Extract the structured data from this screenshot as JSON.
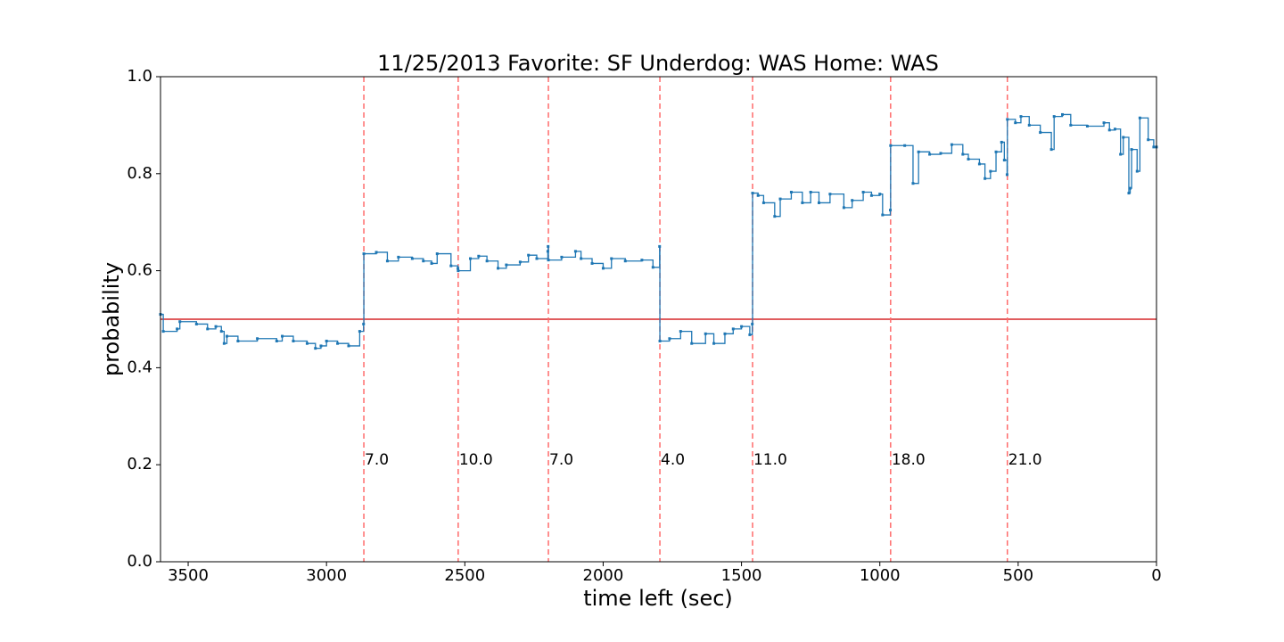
{
  "chart_data": {
    "type": "step",
    "title": "11/25/2013 Favorite: SF Underdog: WAS Home: WAS",
    "x_label": "time left (sec)",
    "y_label": "probability",
    "xlim": [
      3600,
      0
    ],
    "ylim": [
      0,
      1
    ],
    "xticks": [
      3500,
      3000,
      2500,
      2000,
      1500,
      1000,
      500,
      0
    ],
    "yticks": [
      {
        "value": 0,
        "label": "0.0"
      },
      {
        "value": 0.2,
        "label": "0.2"
      },
      {
        "value": 0.4,
        "label": "0.4"
      },
      {
        "value": 0.6,
        "label": "0.6"
      },
      {
        "value": 0.8,
        "label": "0.8"
      },
      {
        "value": 1,
        "label": "1.0"
      }
    ],
    "reference_line": {
      "value": 0.5,
      "color": "#d62728"
    },
    "events": [
      {
        "x": 2865,
        "label": "7.0"
      },
      {
        "x": 2524,
        "label": "10.0"
      },
      {
        "x": 2198,
        "label": "7.0"
      },
      {
        "x": 1795,
        "label": "4.0"
      },
      {
        "x": 1460,
        "label": "11.0"
      },
      {
        "x": 961,
        "label": "18.0"
      },
      {
        "x": 539,
        "label": "21.0"
      }
    ],
    "event_label_y": 0.2,
    "event_color": "#ff6b6b",
    "color": "#1f77b4",
    "x": [
      3600,
      3590,
      3540,
      3530,
      3470,
      3430,
      3400,
      3380,
      3370,
      3360,
      3320,
      3250,
      3180,
      3160,
      3120,
      3070,
      3040,
      3020,
      3000,
      2960,
      2920,
      2880,
      2866,
      2865,
      2820,
      2780,
      2740,
      2690,
      2650,
      2620,
      2600,
      2550,
      2525,
      2524,
      2480,
      2450,
      2420,
      2380,
      2350,
      2300,
      2270,
      2240,
      2200,
      2199,
      2198,
      2150,
      2100,
      2080,
      2040,
      2000,
      1970,
      1920,
      1860,
      1820,
      1796,
      1795,
      1760,
      1720,
      1680,
      1630,
      1600,
      1560,
      1530,
      1500,
      1470,
      1461,
      1460,
      1440,
      1420,
      1380,
      1360,
      1320,
      1280,
      1250,
      1220,
      1180,
      1130,
      1100,
      1060,
      1030,
      1000,
      990,
      962,
      961,
      910,
      880,
      860,
      820,
      780,
      740,
      700,
      680,
      640,
      620,
      600,
      580,
      560,
      550,
      540,
      539,
      510,
      490,
      460,
      420,
      380,
      370,
      340,
      310,
      250,
      190,
      170,
      150,
      130,
      120,
      100,
      95,
      90,
      70,
      60,
      30,
      10,
      0
    ],
    "values": [
      0.51,
      0.475,
      0.48,
      0.495,
      0.49,
      0.48,
      0.485,
      0.475,
      0.45,
      0.465,
      0.455,
      0.46,
      0.455,
      0.465,
      0.455,
      0.45,
      0.44,
      0.445,
      0.455,
      0.45,
      0.445,
      0.475,
      0.49,
      0.635,
      0.638,
      0.62,
      0.628,
      0.625,
      0.62,
      0.615,
      0.635,
      0.61,
      0.605,
      0.6,
      0.625,
      0.63,
      0.62,
      0.605,
      0.612,
      0.618,
      0.632,
      0.625,
      0.64,
      0.65,
      0.622,
      0.628,
      0.64,
      0.625,
      0.615,
      0.605,
      0.625,
      0.62,
      0.622,
      0.607,
      0.65,
      0.455,
      0.46,
      0.475,
      0.45,
      0.47,
      0.45,
      0.47,
      0.48,
      0.485,
      0.468,
      0.49,
      0.76,
      0.755,
      0.74,
      0.712,
      0.748,
      0.762,
      0.74,
      0.762,
      0.74,
      0.758,
      0.73,
      0.745,
      0.762,
      0.755,
      0.758,
      0.715,
      0.725,
      0.858,
      0.858,
      0.78,
      0.845,
      0.84,
      0.842,
      0.86,
      0.84,
      0.83,
      0.82,
      0.79,
      0.805,
      0.845,
      0.865,
      0.828,
      0.798,
      0.912,
      0.905,
      0.918,
      0.9,
      0.885,
      0.85,
      0.918,
      0.922,
      0.9,
      0.898,
      0.905,
      0.89,
      0.892,
      0.84,
      0.875,
      0.76,
      0.77,
      0.85,
      0.805,
      0.915,
      0.87,
      0.855,
      0.855
    ]
  }
}
